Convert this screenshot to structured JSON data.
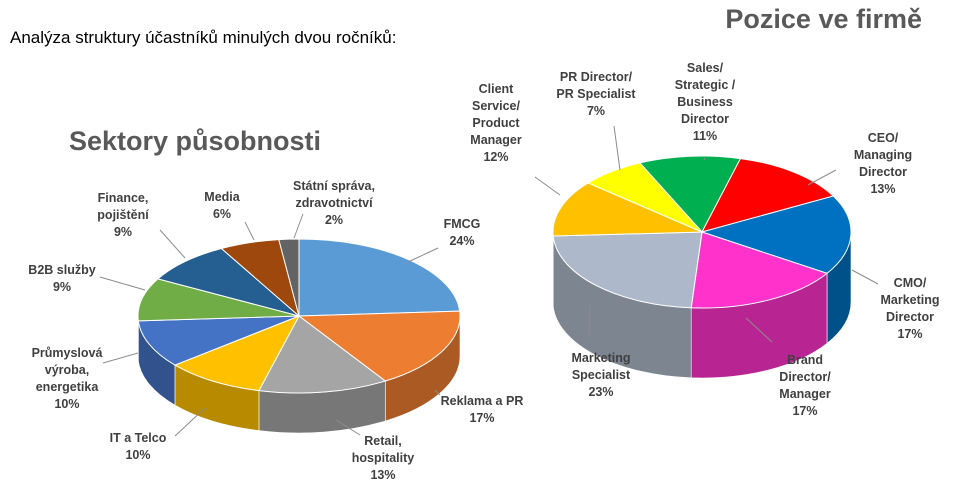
{
  "subtitle": "Analýza struktury účastníků minulých dvou ročníků:",
  "chart_data": [
    {
      "type": "pie",
      "title": "Sektory působnosti",
      "slices": [
        {
          "name": "FMCG",
          "value": 24,
          "label": "24%",
          "color": "#5B9BD5"
        },
        {
          "name": "Reklama a PR",
          "value": 17,
          "label": "17%",
          "color": "#ED7D31"
        },
        {
          "name": "Retail, hospitality",
          "value": 13,
          "label": "13%",
          "color": "#A5A5A5"
        },
        {
          "name": "IT a Telco",
          "value": 10,
          "label": "10%",
          "color": "#FFC000"
        },
        {
          "name": "Průmyslová výroba, energetika",
          "value": 10,
          "label": "10%",
          "color": "#4472C4"
        },
        {
          "name": "B2B služby",
          "value": 9,
          "label": "9%",
          "color": "#70AD47"
        },
        {
          "name": "Finance, pojištění",
          "value": 9,
          "label": "9%",
          "color": "#255E91"
        },
        {
          "name": "Media",
          "value": 6,
          "label": "6%",
          "color": "#9E480E"
        },
        {
          "name": "Státní správa, zdravotnictví",
          "value": 2,
          "label": "2%",
          "color": "#636363"
        }
      ]
    },
    {
      "type": "pie",
      "title": "Pozice ve firmě",
      "slices": [
        {
          "name": "Sales/ Strategic / Business Director",
          "value": 11,
          "label": "11%",
          "color": "#00B050"
        },
        {
          "name": "CEO/ Managing Director",
          "value": 13,
          "label": "13%",
          "color": "#FF0000"
        },
        {
          "name": "CMO/ Marketing Director",
          "value": 17,
          "label": "17%",
          "color": "#0070C0"
        },
        {
          "name": "Brand Director/ Manager",
          "value": 17,
          "label": "17%",
          "color": "#FF33CC"
        },
        {
          "name": "Marketing Specialist",
          "value": 23,
          "label": "23%",
          "color": "#ADB9CA"
        },
        {
          "name": "Client Service/ Product Manager",
          "value": 12,
          "label": "12%",
          "color": "#FFC000"
        },
        {
          "name": "PR Director/ PR Specialist",
          "value": 7,
          "label": "7%",
          "color": "#FFFF00"
        }
      ]
    }
  ]
}
